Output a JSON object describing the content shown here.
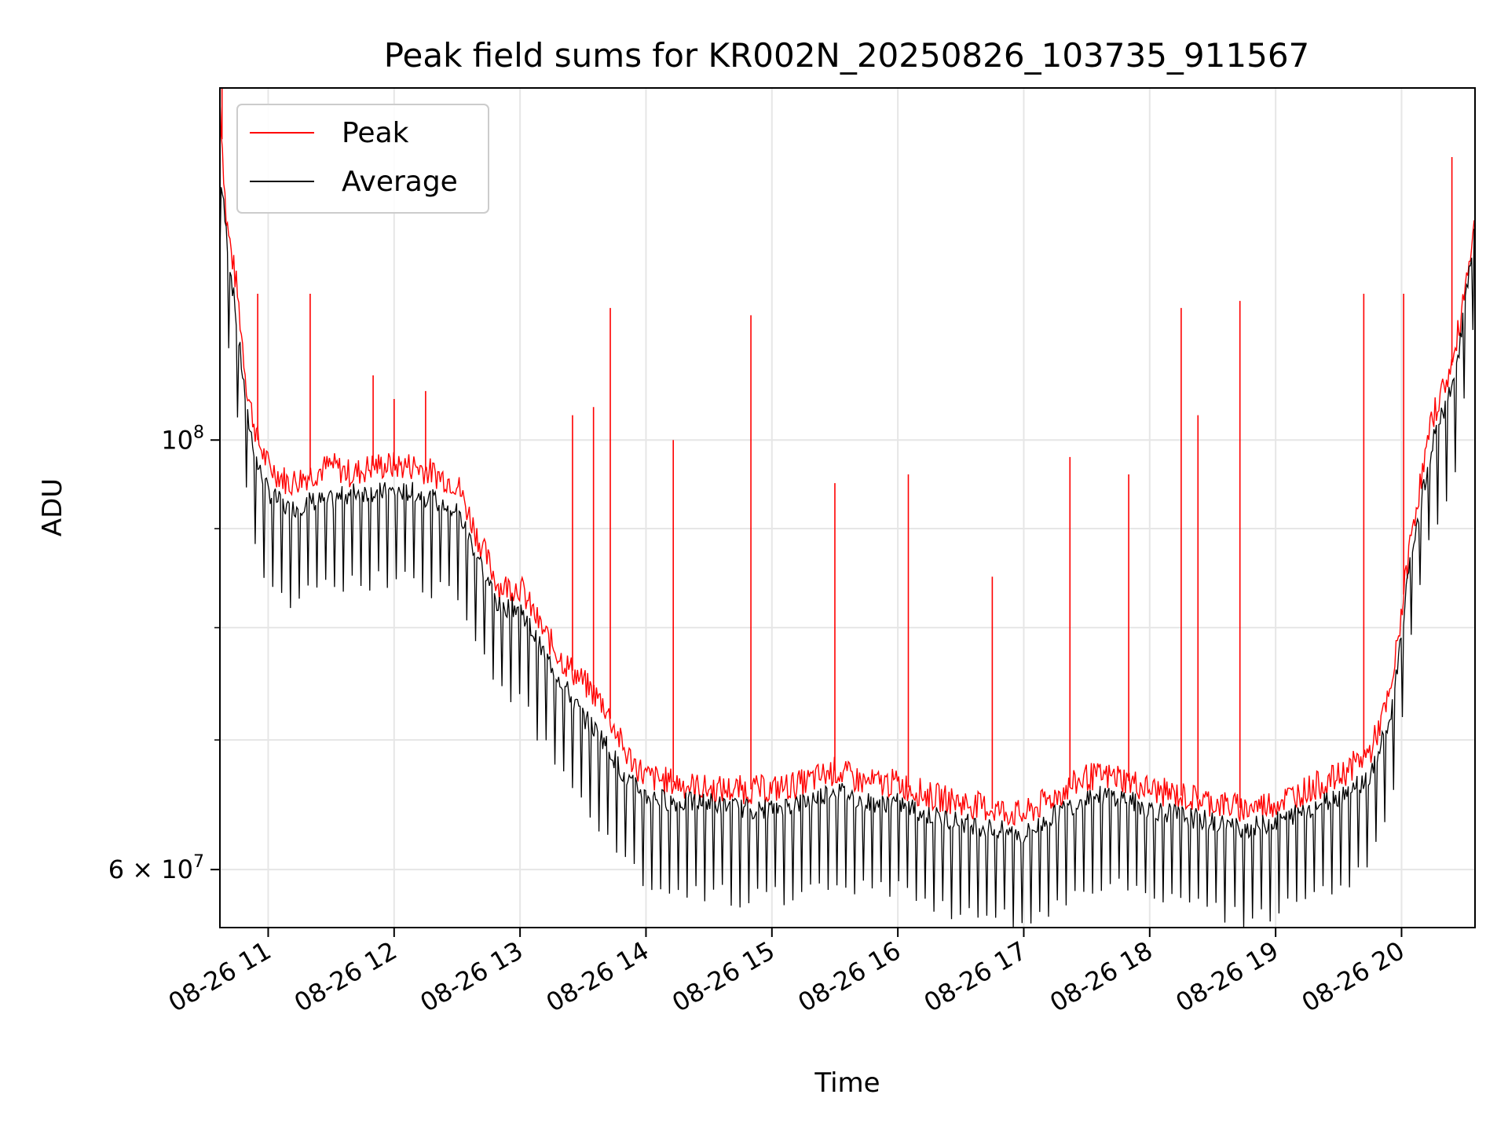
{
  "chart_data": {
    "type": "line",
    "title": "Peak field sums for KR002N_20250826_103735_911567",
    "xlabel": "Time",
    "ylabel": "ADU",
    "y_scale": "log",
    "ylim": [
      56000000,
      152000000
    ],
    "xlim": [
      "08-26 10:37",
      "08-26 20:35"
    ],
    "grid": true,
    "legend_position": "top-left",
    "x_ticks": [
      {
        "value": "08-26 11:00",
        "label": "08-26 11"
      },
      {
        "value": "08-26 12:00",
        "label": "08-26 12"
      },
      {
        "value": "08-26 13:00",
        "label": "08-26 13"
      },
      {
        "value": "08-26 14:00",
        "label": "08-26 14"
      },
      {
        "value": "08-26 15:00",
        "label": "08-26 15"
      },
      {
        "value": "08-26 16:00",
        "label": "08-26 16"
      },
      {
        "value": "08-26 17:00",
        "label": "08-26 17"
      },
      {
        "value": "08-26 18:00",
        "label": "08-26 18"
      },
      {
        "value": "08-26 19:00",
        "label": "08-26 19"
      },
      {
        "value": "08-26 20:00",
        "label": "08-26 20"
      }
    ],
    "y_ticks": [
      {
        "value": 100000000,
        "base": "10",
        "exp": "8",
        "mant": ""
      },
      {
        "value": 60000000,
        "base": "10",
        "exp": "7",
        "mant": "6 × "
      }
    ],
    "y_minor_ticks": [
      70000000,
      80000000,
      90000000
    ],
    "series": [
      {
        "name": "Peak",
        "color": "#ff0000",
        "x": [
          "08-26 10:37",
          "08-26 10:40",
          "08-26 10:45",
          "08-26 10:50",
          "08-26 10:55",
          "08-26 11:00",
          "08-26 11:10",
          "08-26 11:20",
          "08-26 11:30",
          "08-26 11:40",
          "08-26 11:50",
          "08-26 12:00",
          "08-26 12:10",
          "08-26 12:20",
          "08-26 12:30",
          "08-26 12:40",
          "08-26 12:50",
          "08-26 13:00",
          "08-26 13:10",
          "08-26 13:20",
          "08-26 13:30",
          "08-26 13:40",
          "08-26 13:50",
          "08-26 14:00",
          "08-26 14:15",
          "08-26 14:30",
          "08-26 14:45",
          "08-26 15:00",
          "08-26 15:15",
          "08-26 15:30",
          "08-26 15:45",
          "08-26 16:00",
          "08-26 16:15",
          "08-26 16:30",
          "08-26 16:45",
          "08-26 17:00",
          "08-26 17:15",
          "08-26 17:30",
          "08-26 17:45",
          "08-26 18:00",
          "08-26 18:15",
          "08-26 18:30",
          "08-26 18:45",
          "08-26 19:00",
          "08-26 19:15",
          "08-26 19:30",
          "08-26 19:45",
          "08-26 19:55",
          "08-26 20:05",
          "08-26 20:15",
          "08-26 20:25",
          "08-26 20:35"
        ],
        "values": [
          150000000,
          130000000,
          120000000,
          106000000,
          100000000,
          97000000,
          95000000,
          96000000,
          97000000,
          96000000,
          97000000,
          97000000,
          97000000,
          96000000,
          95000000,
          89000000,
          84000000,
          84000000,
          80000000,
          77000000,
          75000000,
          73000000,
          69000000,
          67000000,
          66500000,
          66000000,
          66000000,
          66000000,
          66500000,
          67500000,
          66500000,
          66500000,
          65500000,
          65000000,
          64500000,
          64000000,
          65500000,
          67000000,
          67000000,
          66000000,
          65500000,
          65000000,
          64500000,
          65000000,
          66000000,
          67000000,
          69000000,
          74000000,
          90000000,
          103000000,
          110000000,
          130000000
        ]
      },
      {
        "name": "Average",
        "color": "#000000",
        "x": [
          "08-26 10:37",
          "08-26 10:40",
          "08-26 10:45",
          "08-26 10:50",
          "08-26 10:55",
          "08-26 11:00",
          "08-26 11:10",
          "08-26 11:20",
          "08-26 11:30",
          "08-26 11:40",
          "08-26 11:50",
          "08-26 12:00",
          "08-26 12:10",
          "08-26 12:20",
          "08-26 12:30",
          "08-26 12:40",
          "08-26 12:50",
          "08-26 13:00",
          "08-26 13:10",
          "08-26 13:20",
          "08-26 13:30",
          "08-26 13:40",
          "08-26 13:50",
          "08-26 14:00",
          "08-26 14:15",
          "08-26 14:30",
          "08-26 14:45",
          "08-26 15:00",
          "08-26 15:15",
          "08-26 15:30",
          "08-26 15:45",
          "08-26 16:00",
          "08-26 16:15",
          "08-26 16:30",
          "08-26 16:45",
          "08-26 17:00",
          "08-26 17:15",
          "08-26 17:30",
          "08-26 17:45",
          "08-26 18:00",
          "08-26 18:15",
          "08-26 18:30",
          "08-26 18:45",
          "08-26 19:00",
          "08-26 19:15",
          "08-26 19:30",
          "08-26 19:45",
          "08-26 19:55",
          "08-26 20:05",
          "08-26 20:15",
          "08-26 20:25",
          "08-26 20:35"
        ],
        "values": [
          138000000,
          128000000,
          115000000,
          103000000,
          97000000,
          94000000,
          92000000,
          93000000,
          93000000,
          94000000,
          94000000,
          94000000,
          94000000,
          93000000,
          92000000,
          87000000,
          82000000,
          82000000,
          78000000,
          75000000,
          72000000,
          70000000,
          67000000,
          65500000,
          65000000,
          65000000,
          64500000,
          64500000,
          65000000,
          66000000,
          65000000,
          65000000,
          64000000,
          63500000,
          63000000,
          62500000,
          64000000,
          65500000,
          65500000,
          64500000,
          64000000,
          63500000,
          63000000,
          63500000,
          64500000,
          65500000,
          67000000,
          72000000,
          88000000,
          100000000,
          107000000,
          128000000
        ]
      }
    ],
    "peak_spikes": [
      {
        "x": "08-26 10:38",
        "value": 152000000
      },
      {
        "x": "08-26 10:55",
        "value": 119000000
      },
      {
        "x": "08-26 11:20",
        "value": 119000000
      },
      {
        "x": "08-26 11:50",
        "value": 108000000
      },
      {
        "x": "08-26 12:00",
        "value": 105000000
      },
      {
        "x": "08-26 12:15",
        "value": 106000000
      },
      {
        "x": "08-26 13:25",
        "value": 103000000
      },
      {
        "x": "08-26 13:35",
        "value": 104000000
      },
      {
        "x": "08-26 13:43",
        "value": 117000000
      },
      {
        "x": "08-26 14:13",
        "value": 100000000
      },
      {
        "x": "08-26 14:50",
        "value": 116000000
      },
      {
        "x": "08-26 15:30",
        "value": 95000000
      },
      {
        "x": "08-26 16:05",
        "value": 96000000
      },
      {
        "x": "08-26 16:45",
        "value": 85000000
      },
      {
        "x": "08-26 17:22",
        "value": 98000000
      },
      {
        "x": "08-26 17:50",
        "value": 96000000
      },
      {
        "x": "08-26 18:15",
        "value": 117000000
      },
      {
        "x": "08-26 18:23",
        "value": 103000000
      },
      {
        "x": "08-26 18:43",
        "value": 118000000
      },
      {
        "x": "08-26 19:42",
        "value": 119000000
      },
      {
        "x": "08-26 20:01",
        "value": 119000000
      },
      {
        "x": "08-26 20:24",
        "value": 140000000
      }
    ]
  }
}
